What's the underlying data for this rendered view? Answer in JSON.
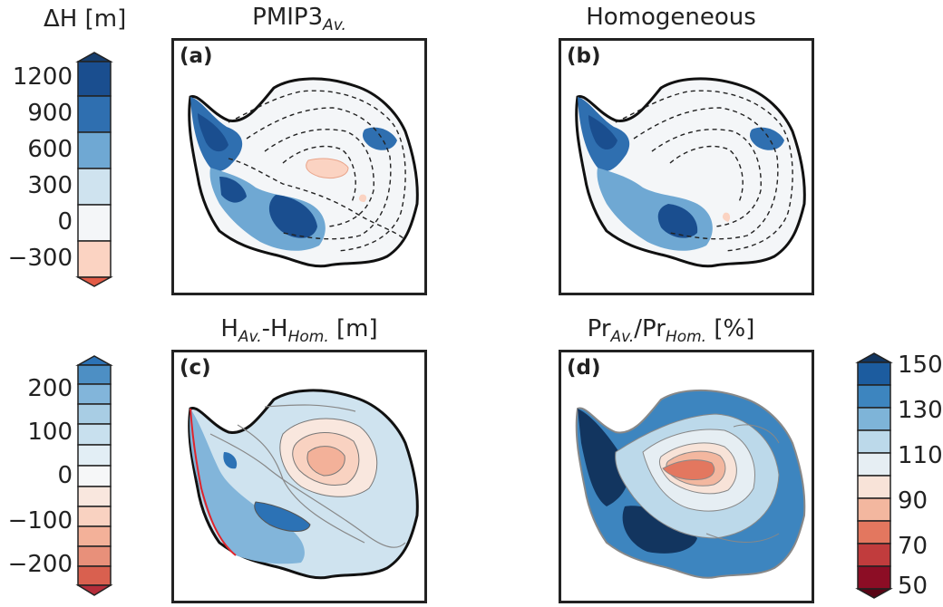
{
  "top_colorbar": {
    "title": "ΔH [m]",
    "ticks": [
      "1200",
      "900",
      "600",
      "300",
      "0",
      "−300"
    ],
    "colors": [
      "#1a4e8f",
      "#4292c6",
      "#92c5de",
      "#d1e5f0",
      "#f4f6f8",
      "#fbd3c2",
      "#e25b46",
      "#163e6e"
    ]
  },
  "bottom_left_colorbar": {
    "ticks": [
      "200",
      "100",
      "0",
      "−100",
      "−200"
    ],
    "colors": [
      "#2c72b5",
      "#6fa6d0",
      "#9cc5e0",
      "#bfdbec",
      "#ddeaf3",
      "#f2f4f5",
      "#f8e6dd",
      "#f9d2c1",
      "#f4b59f",
      "#e99279",
      "#d9604f",
      "#b52d3a"
    ]
  },
  "bottom_right_colorbar": {
    "ticks": [
      "150",
      "130",
      "110",
      "90",
      "70",
      "50"
    ],
    "colors": [
      "#1c5c9f",
      "#3d85bf",
      "#7eb4d8",
      "#bcd9ea",
      "#e6eef3",
      "#f8e3d8",
      "#f3b79f",
      "#e3775f",
      "#c13c3d",
      "#8c0d25"
    ]
  },
  "panels": [
    {
      "label": "(a)",
      "title_main": "PMIP3",
      "title_sub": "Av.",
      "title_suffix": ""
    },
    {
      "label": "(b)",
      "title_main": "Homogeneous",
      "title_sub": "",
      "title_suffix": ""
    },
    {
      "label": "(c)",
      "title_main": "H",
      "title_sub": "Av.",
      "title_mid": "-H",
      "title_sub2": "Hom.",
      "title_suffix": " [m]"
    },
    {
      "label": "(d)",
      "title_main": "Pr",
      "title_sub": "Av.",
      "title_mid": "/Pr",
      "title_sub2": "Hom.",
      "title_suffix": " [%]"
    }
  ]
}
